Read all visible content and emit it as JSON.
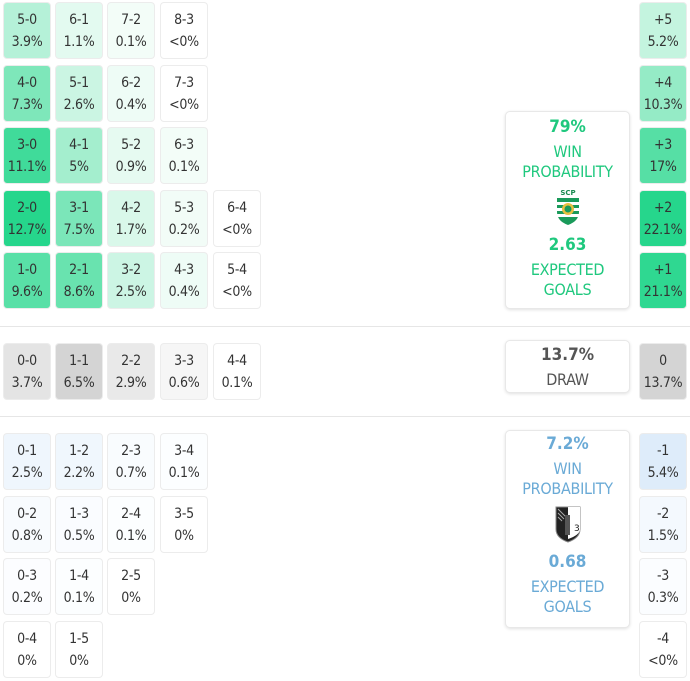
{
  "colors": {
    "home_accent": "#1fc87e",
    "away_accent": "#6aaad6",
    "draw_accent": "#555555"
  },
  "home": {
    "win_probability": "79%",
    "win_label_1": "WIN",
    "win_label_2": "PROBABILITY",
    "crest": "sporting-cp-crest",
    "expected_goals": "2.63",
    "xg_label_1": "EXPECTED",
    "xg_label_2": "GOALS"
  },
  "draw": {
    "probability": "13.7%",
    "label": "DRAW"
  },
  "away": {
    "win_probability": "7.2%",
    "win_label_1": "WIN",
    "win_label_2": "PROBABILITY",
    "crest": "vitoria-guimaraes-crest",
    "expected_goals": "0.68",
    "xg_label_1": "EXPECTED",
    "xg_label_2": "GOALS"
  },
  "home_scores": [
    [
      {
        "s": "5-0",
        "p": "3.9%"
      },
      {
        "s": "6-1",
        "p": "1.1%"
      },
      {
        "s": "7-2",
        "p": "0.1%"
      },
      {
        "s": "8-3",
        "p": "<0%"
      }
    ],
    [
      {
        "s": "4-0",
        "p": "7.3%"
      },
      {
        "s": "5-1",
        "p": "2.6%"
      },
      {
        "s": "6-2",
        "p": "0.4%"
      },
      {
        "s": "7-3",
        "p": "<0%"
      }
    ],
    [
      {
        "s": "3-0",
        "p": "11.1%"
      },
      {
        "s": "4-1",
        "p": "5%"
      },
      {
        "s": "5-2",
        "p": "0.9%"
      },
      {
        "s": "6-3",
        "p": "0.1%"
      }
    ],
    [
      {
        "s": "2-0",
        "p": "12.7%"
      },
      {
        "s": "3-1",
        "p": "7.5%"
      },
      {
        "s": "4-2",
        "p": "1.7%"
      },
      {
        "s": "5-3",
        "p": "0.2%"
      },
      {
        "s": "6-4",
        "p": "<0%"
      }
    ],
    [
      {
        "s": "1-0",
        "p": "9.6%"
      },
      {
        "s": "2-1",
        "p": "8.6%"
      },
      {
        "s": "3-2",
        "p": "2.5%"
      },
      {
        "s": "4-3",
        "p": "0.4%"
      },
      {
        "s": "5-4",
        "p": "<0%"
      }
    ]
  ],
  "draw_scores": [
    {
      "s": "0-0",
      "p": "3.7%"
    },
    {
      "s": "1-1",
      "p": "6.5%"
    },
    {
      "s": "2-2",
      "p": "2.9%"
    },
    {
      "s": "3-3",
      "p": "0.6%"
    },
    {
      "s": "4-4",
      "p": "0.1%"
    }
  ],
  "away_scores": [
    [
      {
        "s": "0-1",
        "p": "2.5%"
      },
      {
        "s": "1-2",
        "p": "2.2%"
      },
      {
        "s": "2-3",
        "p": "0.7%"
      },
      {
        "s": "3-4",
        "p": "0.1%"
      }
    ],
    [
      {
        "s": "0-2",
        "p": "0.8%"
      },
      {
        "s": "1-3",
        "p": "0.5%"
      },
      {
        "s": "2-4",
        "p": "0.1%"
      },
      {
        "s": "3-5",
        "p": "0%"
      }
    ],
    [
      {
        "s": "0-3",
        "p": "0.2%"
      },
      {
        "s": "1-4",
        "p": "0.1%"
      },
      {
        "s": "2-5",
        "p": "0%"
      }
    ],
    [
      {
        "s": "0-4",
        "p": "0%"
      },
      {
        "s": "1-5",
        "p": "0%"
      }
    ]
  ],
  "margins": [
    {
      "m": "+5",
      "p": "5.2%"
    },
    {
      "m": "+4",
      "p": "10.3%"
    },
    {
      "m": "+3",
      "p": "17%"
    },
    {
      "m": "+2",
      "p": "22.1%"
    },
    {
      "m": "+1",
      "p": "21.1%"
    },
    {
      "m": "0",
      "p": "13.7%"
    },
    {
      "m": "-1",
      "p": "5.4%"
    },
    {
      "m": "-2",
      "p": "1.5%"
    },
    {
      "m": "-3",
      "p": "0.3%"
    },
    {
      "m": "-4",
      "p": "<0%"
    }
  ],
  "chart_data": {
    "type": "heatmap",
    "title": "Scoreline probability matrix",
    "home_team_win_probability": 79.0,
    "draw_probability": 13.7,
    "away_team_win_probability": 7.2,
    "home_expected_goals": 2.63,
    "away_expected_goals": 0.68,
    "scorelines": {
      "5-0": 3.9,
      "6-1": 1.1,
      "7-2": 0.1,
      "8-3": 0,
      "4-0": 7.3,
      "5-1": 2.6,
      "6-2": 0.4,
      "7-3": 0,
      "3-0": 11.1,
      "4-1": 5.0,
      "5-2": 0.9,
      "6-3": 0.1,
      "2-0": 12.7,
      "3-1": 7.5,
      "4-2": 1.7,
      "5-3": 0.2,
      "6-4": 0,
      "1-0": 9.6,
      "2-1": 8.6,
      "3-2": 2.5,
      "4-3": 0.4,
      "5-4": 0,
      "0-0": 3.7,
      "1-1": 6.5,
      "2-2": 2.9,
      "3-3": 0.6,
      "4-4": 0.1,
      "0-1": 2.5,
      "1-2": 2.2,
      "2-3": 0.7,
      "3-4": 0.1,
      "0-2": 0.8,
      "1-3": 0.5,
      "2-4": 0.1,
      "3-5": 0,
      "0-3": 0.2,
      "1-4": 0.1,
      "2-5": 0,
      "0-4": 0,
      "1-5": 0
    },
    "goal_margin": {
      "categories": [
        "+5",
        "+4",
        "+3",
        "+2",
        "+1",
        "0",
        "-1",
        "-2",
        "-3",
        "-4"
      ],
      "values": [
        5.2,
        10.3,
        17.0,
        22.1,
        21.1,
        13.7,
        5.4,
        1.5,
        0.3,
        0
      ]
    }
  }
}
